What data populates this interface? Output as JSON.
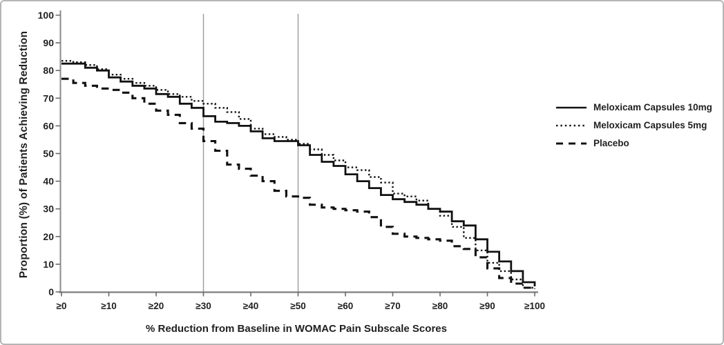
{
  "frame": {
    "border_color": "#b5b5b5",
    "background_color": "#ffffff",
    "line_color": "#111111",
    "axis_color": "#8a8a8a",
    "text_color": "#1f1f1f",
    "reference_line_color": "#9a9a9a"
  },
  "chart_data": {
    "type": "line",
    "subtype": "step",
    "title": "",
    "xlabel": "% Reduction from Baseline in WOMAC Pain Subscale Scores",
    "ylabel": "Proportion (%) of Patients Achieving Reduction",
    "xlim": [
      0,
      100
    ],
    "ylim": [
      0,
      100
    ],
    "grid": false,
    "legend_position": "right-outside",
    "reference_lines_x": [
      30,
      50
    ],
    "x_tick_values": [
      0,
      10,
      20,
      30,
      40,
      50,
      60,
      70,
      80,
      90,
      100
    ],
    "x_tick_labels": [
      "≥0",
      "≥10",
      "≥20",
      "≥30",
      "≥40",
      "≥50",
      "≥60",
      "≥70",
      "≥80",
      "≥90",
      "≥100"
    ],
    "y_tick_values": [
      0,
      10,
      20,
      30,
      40,
      50,
      60,
      70,
      80,
      90,
      100
    ],
    "x": [
      0,
      2.5,
      5,
      7.5,
      10,
      12.5,
      15,
      17.5,
      20,
      22.5,
      25,
      27.5,
      30,
      32.5,
      35,
      37.5,
      40,
      42.5,
      45,
      47.5,
      50,
      52.5,
      55,
      57.5,
      60,
      62.5,
      65,
      67.5,
      70,
      72.5,
      75,
      77.5,
      80,
      82.5,
      85,
      87.5,
      90,
      92.5,
      95,
      97.5,
      100
    ],
    "series": [
      {
        "name": "Meloxicam Capsules 10mg",
        "id": "meloxicam-10mg",
        "style": "solid",
        "color": "#111111",
        "values": [
          82.5,
          82.5,
          81,
          80,
          77.5,
          76,
          74.5,
          73.5,
          71.5,
          70.5,
          68,
          66.5,
          63.5,
          61.5,
          61,
          60,
          58,
          55.5,
          54.5,
          54.5,
          53,
          49.5,
          47,
          45.5,
          42.5,
          40,
          37.5,
          35,
          33.5,
          32.5,
          31.5,
          30,
          29,
          25.5,
          24,
          19,
          14.5,
          11,
          7.5,
          3.5,
          2
        ]
      },
      {
        "name": "Meloxicam Capsules 5mg",
        "id": "meloxicam-5mg",
        "style": "dotted",
        "color": "#111111",
        "values": [
          83.5,
          83,
          82,
          80.5,
          78.5,
          77,
          75.5,
          74.5,
          73,
          71.5,
          70.5,
          69,
          68,
          66.5,
          65,
          62.5,
          59,
          57,
          56,
          55,
          53.5,
          51.5,
          49.5,
          47.5,
          45,
          44,
          41.5,
          39.5,
          35.5,
          34.5,
          33,
          30,
          27.5,
          23.5,
          19.5,
          15,
          10.5,
          7.5,
          4.5,
          1.5,
          1
        ]
      },
      {
        "name": "Placebo",
        "id": "placebo",
        "style": "dashed",
        "color": "#111111",
        "values": [
          77,
          75.5,
          74.5,
          73.5,
          73,
          72,
          70,
          68,
          65.5,
          64,
          61,
          59,
          54.5,
          51,
          46,
          44.5,
          42,
          40,
          36.5,
          34.5,
          34,
          31.5,
          30.5,
          30,
          29.5,
          29,
          27,
          23.5,
          21,
          20,
          19.5,
          19,
          18.5,
          16.5,
          15.5,
          12.5,
          8.5,
          5,
          3,
          1.5,
          1
        ]
      }
    ]
  }
}
